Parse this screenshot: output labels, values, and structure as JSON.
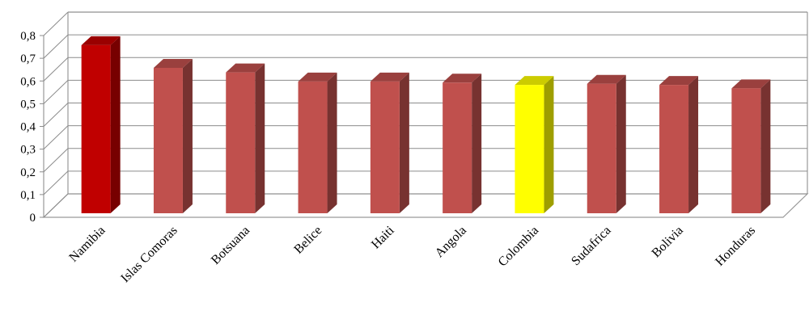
{
  "chart_data": {
    "type": "bar",
    "categories": [
      "Namibia",
      "Islas Comoras",
      "Botsuana",
      "Belice",
      "Haiti",
      "Angola",
      "Colombia",
      "Sudafrica",
      "Bolivia",
      "Honduras"
    ],
    "values": [
      0.74,
      0.64,
      0.62,
      0.58,
      0.58,
      0.575,
      0.565,
      0.57,
      0.565,
      0.55
    ],
    "bar_colors": [
      "#c00000",
      "#c0504d",
      "#c0504d",
      "#c0504d",
      "#c0504d",
      "#c0504d",
      "#ffff00",
      "#c0504d",
      "#c0504d",
      "#c0504d"
    ],
    "y_ticks": [
      "0",
      "0,1",
      "0,2",
      "0,3",
      "0,4",
      "0,5",
      "0,6",
      "0,7",
      "0,8"
    ],
    "ylim": [
      0,
      0.8
    ],
    "grid": true,
    "legend": "none",
    "title": "",
    "xlabel": "",
    "ylabel": ""
  }
}
